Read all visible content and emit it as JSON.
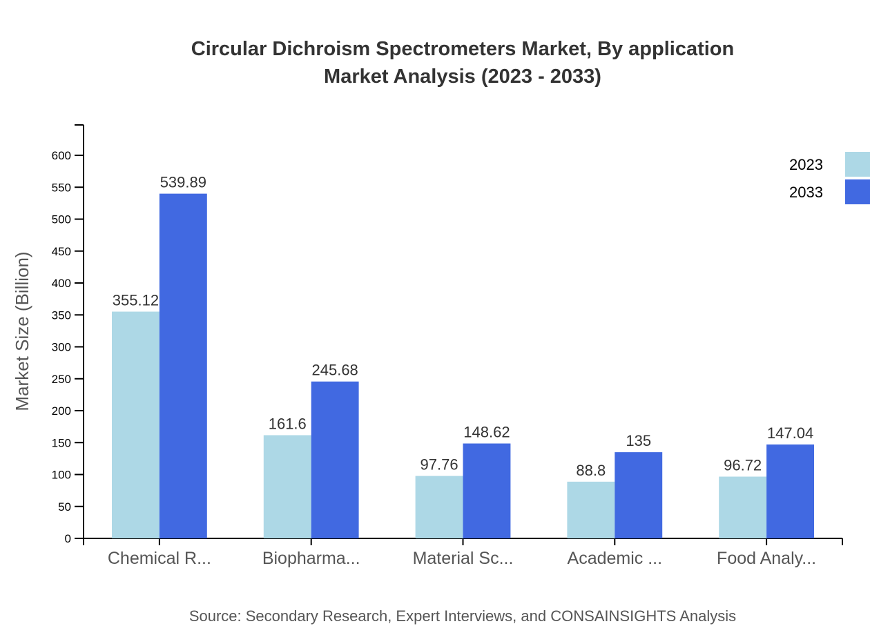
{
  "chart_data": {
    "type": "bar",
    "title": "Circular Dichroism Spectrometers Market, By application",
    "subtitle": "Market Analysis (2023 - 2033)",
    "ylabel": "Market Size (Billion)",
    "xlabel": "",
    "ylim": [
      0,
      600
    ],
    "yticks": [
      0,
      50,
      100,
      150,
      200,
      250,
      300,
      350,
      400,
      450,
      500,
      550,
      600
    ],
    "categories": [
      "Chemical R...",
      "Biopharma...",
      "Material Sc...",
      "Academic ...",
      "Food Analy..."
    ],
    "series": [
      {
        "name": "2023",
        "color": "#ADD8E6",
        "values": [
          355.12,
          161.6,
          97.76,
          88.8,
          96.72
        ]
      },
      {
        "name": "2033",
        "color": "#4169E1",
        "values": [
          539.89,
          245.68,
          148.62,
          135,
          147.04
        ]
      }
    ],
    "legend_position": "top-right",
    "grid": false,
    "source": "Source: Secondary Research, Expert Interviews, and CONSAINSIGHTS Analysis"
  }
}
